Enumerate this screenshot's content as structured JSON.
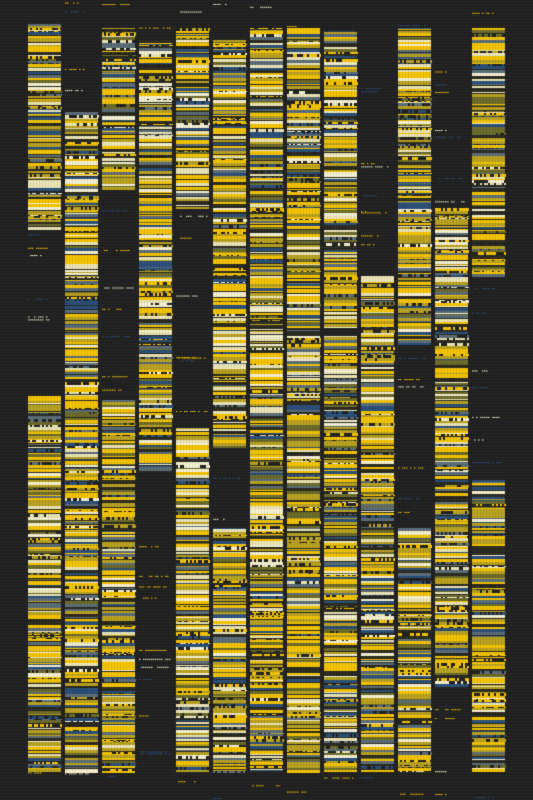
{
  "canvas": {
    "background": "#212121",
    "palette": {
      "yellow": "#f2c200",
      "gold": "#b8a020",
      "olive": "#6b6a2a",
      "pale": "#e8e2b4",
      "cream": "#f4efd0",
      "blue": "#2a4e78",
      "slate": "#5b6c78",
      "dark": "#2a2a20"
    }
  },
  "columns": [
    {
      "id": "c1",
      "segments": [
        [
          0.03,
          0.285
        ],
        [
          0.495,
          0.965
        ]
      ]
    },
    {
      "id": "c2",
      "segments": [
        [
          0.14,
          0.965
        ]
      ]
    },
    {
      "id": "c3",
      "segments": [
        [
          0.035,
          0.235
        ],
        [
          0.5,
          0.965
        ]
      ]
    },
    {
      "id": "c4",
      "segments": [
        [
          0.05,
          0.59
        ]
      ]
    },
    {
      "id": "c5",
      "segments": [
        [
          0.035,
          0.26
        ],
        [
          0.535,
          0.965
        ]
      ]
    },
    {
      "id": "c6",
      "segments": [
        [
          0.05,
          0.56
        ],
        [
          0.66,
          0.965
        ]
      ]
    },
    {
      "id": "c7",
      "segments": [
        [
          0.035,
          0.965
        ]
      ]
    },
    {
      "id": "c8",
      "segments": [
        [
          0.035,
          0.965
        ]
      ]
    },
    {
      "id": "c9",
      "segments": [
        [
          0.04,
          0.41
        ],
        [
          0.42,
          0.965
        ]
      ]
    },
    {
      "id": "c10",
      "segments": [
        [
          0.345,
          0.965
        ]
      ]
    },
    {
      "id": "c11",
      "segments": [
        [
          0.035,
          0.43
        ],
        [
          0.66,
          0.965
        ]
      ]
    },
    {
      "id": "c12",
      "segments": [
        [
          0.26,
          0.86
        ]
      ]
    },
    {
      "id": "c13",
      "segments": [
        [
          0.035,
          0.345
        ],
        [
          0.6,
          0.965
        ]
      ]
    },
    {
      "id": "c14",
      "segments": [
        [
          0.035,
          0.965
        ]
      ]
    }
  ]
}
